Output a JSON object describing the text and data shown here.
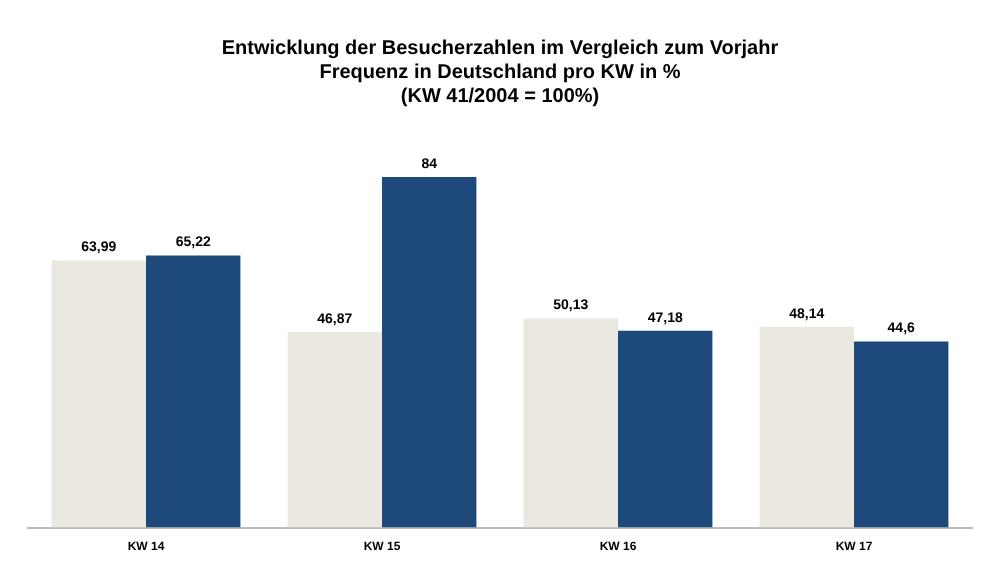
{
  "chart_data": {
    "type": "bar",
    "title": "Entwicklung der Besucherzahlen im Vergleich zum Vorjahr\nFrequenz in Deutschland pro KW in %\n(KW 41/2004 = 100%)",
    "categories": [
      "KW 14",
      "KW 15",
      "KW 16",
      "KW 17"
    ],
    "series": [
      {
        "color": "#ebe8e0",
        "values": [
          63.99,
          46.87,
          50.13,
          48.14
        ],
        "value_labels": [
          "63,99",
          "46,87",
          "50,13",
          "48,14"
        ]
      },
      {
        "color": "#1d4a7a",
        "values": [
          65.22,
          84,
          47.18,
          44.6
        ],
        "value_labels": [
          "65,22",
          "84",
          "47,18",
          "44,6"
        ]
      }
    ],
    "grid": false,
    "legend": false
  }
}
